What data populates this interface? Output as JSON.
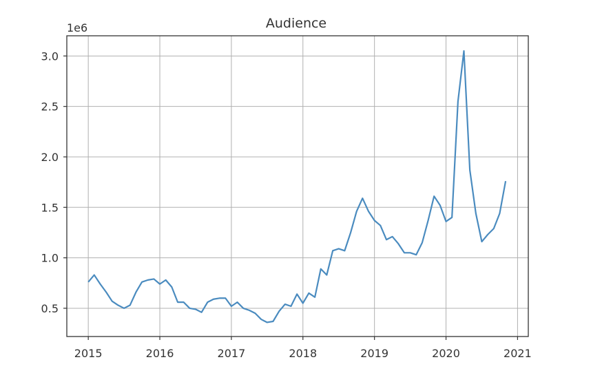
{
  "chart_data": {
    "type": "line",
    "title": "Audience",
    "xlabel": "",
    "ylabel": "",
    "y_offset_label": "1e6",
    "xlim": [
      2014.7,
      2021.15
    ],
    "ylim": [
      0.22,
      3.2
    ],
    "x_ticks": [
      2015,
      2016,
      2017,
      2018,
      2019,
      2020,
      2021
    ],
    "x_tick_labels": [
      "2015",
      "2016",
      "2017",
      "2018",
      "2019",
      "2020",
      "2021"
    ],
    "y_ticks": [
      0.5,
      1.0,
      1.5,
      2.0,
      2.5,
      3.0
    ],
    "y_tick_labels": [
      "0.5",
      "1.0",
      "1.5",
      "2.0",
      "2.5",
      "3.0"
    ],
    "grid": true,
    "series_color": "#4a8bbf",
    "x": [
      2015.0,
      2015.083,
      2015.167,
      2015.25,
      2015.333,
      2015.417,
      2015.5,
      2015.583,
      2015.667,
      2015.75,
      2015.833,
      2015.917,
      2016.0,
      2016.083,
      2016.167,
      2016.25,
      2016.333,
      2016.417,
      2016.5,
      2016.583,
      2016.667,
      2016.75,
      2016.833,
      2016.917,
      2017.0,
      2017.083,
      2017.167,
      2017.25,
      2017.333,
      2017.417,
      2017.5,
      2017.583,
      2017.667,
      2017.75,
      2017.833,
      2017.917,
      2018.0,
      2018.083,
      2018.167,
      2018.25,
      2018.333,
      2018.417,
      2018.5,
      2018.583,
      2018.667,
      2018.75,
      2018.833,
      2018.917,
      2019.0,
      2019.083,
      2019.167,
      2019.25,
      2019.333,
      2019.417,
      2019.5,
      2019.583,
      2019.667,
      2019.75,
      2019.833,
      2019.917,
      2020.0,
      2020.083,
      2020.167,
      2020.25,
      2020.333,
      2020.417,
      2020.5,
      2020.583,
      2020.667,
      2020.75,
      2020.833
    ],
    "y": [
      0.76,
      0.83,
      0.74,
      0.66,
      0.57,
      0.53,
      0.5,
      0.53,
      0.66,
      0.76,
      0.78,
      0.79,
      0.74,
      0.78,
      0.71,
      0.56,
      0.56,
      0.5,
      0.49,
      0.46,
      0.56,
      0.59,
      0.6,
      0.6,
      0.52,
      0.56,
      0.5,
      0.48,
      0.45,
      0.39,
      0.36,
      0.37,
      0.47,
      0.54,
      0.52,
      0.64,
      0.55,
      0.65,
      0.61,
      0.89,
      0.83,
      1.07,
      1.09,
      1.07,
      1.25,
      1.46,
      1.59,
      1.46,
      1.37,
      1.32,
      1.18,
      1.21,
      1.14,
      1.05,
      1.05,
      1.03,
      1.15,
      1.37,
      1.61,
      1.52,
      1.36,
      1.4,
      2.55,
      3.05,
      1.87,
      1.44,
      1.16,
      1.23,
      1.29,
      1.44,
      1.76
    ]
  }
}
